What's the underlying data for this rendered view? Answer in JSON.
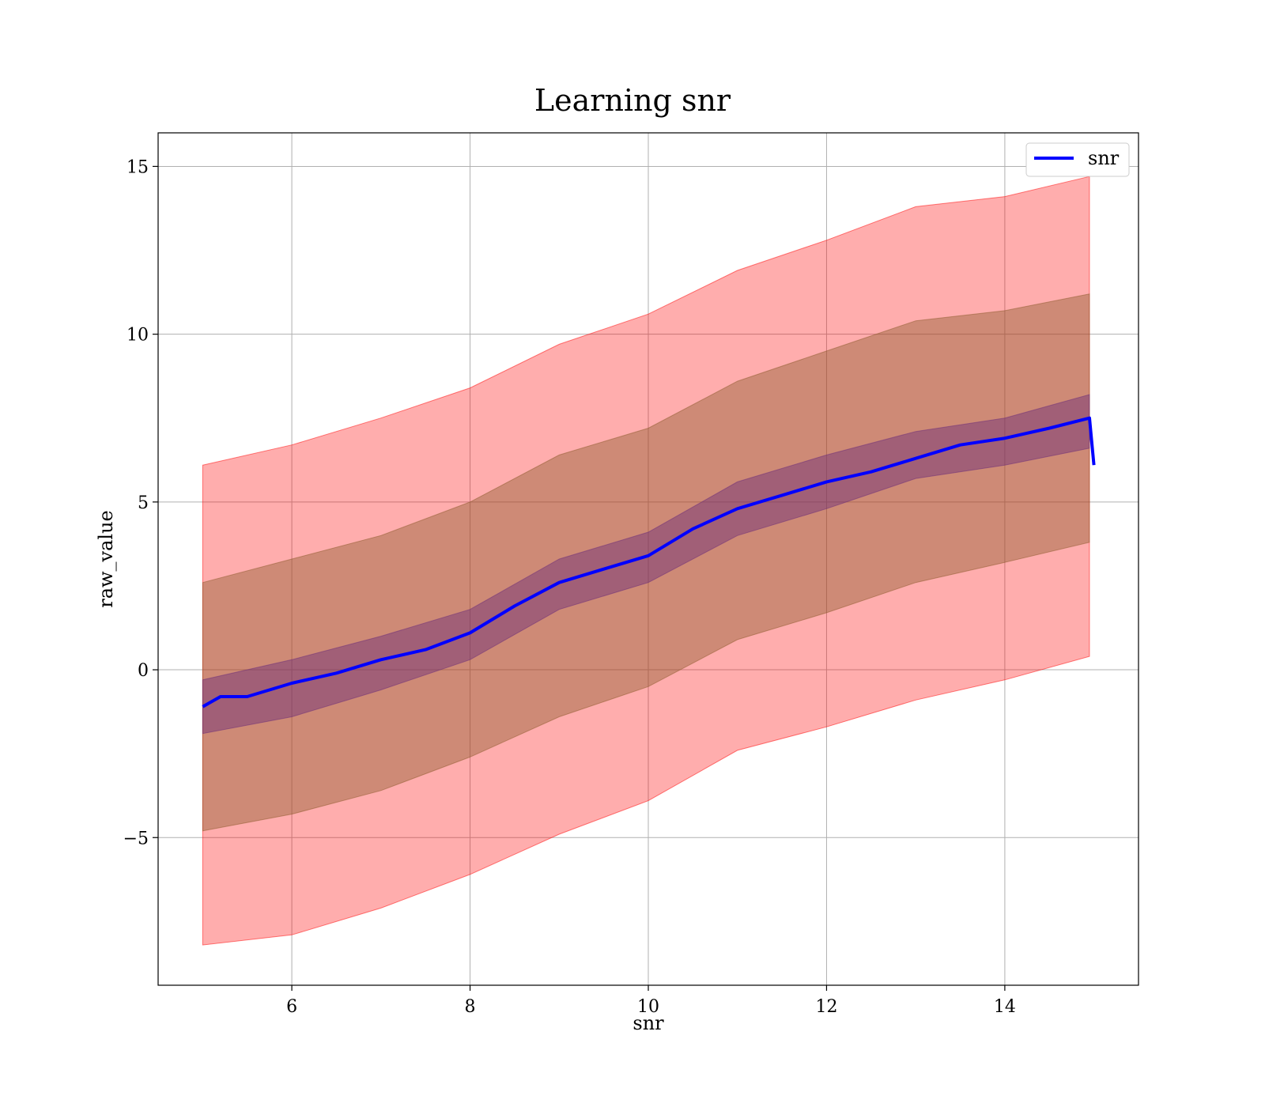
{
  "chart_data": {
    "type": "line",
    "title": "Learning snr",
    "xlabel": "snr",
    "ylabel": "raw_value",
    "xlim": [
      4.5,
      15.5
    ],
    "ylim": [
      -9.4,
      16.0
    ],
    "xticks": [
      6,
      8,
      10,
      12,
      14
    ],
    "yticks": [
      15,
      10,
      5,
      0,
      -5
    ],
    "ytick_labels": [
      "15",
      "10",
      "5",
      "0",
      "−5"
    ],
    "xtick_labels": [
      "6",
      "8",
      "10",
      "12",
      "14"
    ],
    "grid": true,
    "legend": {
      "placement": "top-right",
      "entries": [
        "snr"
      ]
    },
    "colors": {
      "line": "#0000ff",
      "band_outer": "#ff0000",
      "band_middle": "#8b5a2b",
      "band_inner": "#6a2b7a"
    },
    "series": [
      {
        "name": "snr",
        "x": [
          5.0,
          5.2,
          5.5,
          6.0,
          6.5,
          7.0,
          7.5,
          8.0,
          8.5,
          9.0,
          9.5,
          10.0,
          10.5,
          11.0,
          11.5,
          12.0,
          12.5,
          13.0,
          13.5,
          14.0,
          14.5,
          14.95,
          15.0
        ],
        "values": [
          -1.1,
          -0.8,
          -0.8,
          -0.4,
          -0.1,
          0.3,
          0.6,
          1.1,
          1.9,
          2.6,
          3.0,
          3.4,
          4.2,
          4.8,
          5.2,
          5.6,
          5.9,
          6.3,
          6.7,
          6.9,
          7.2,
          7.5,
          6.1
        ]
      }
    ],
    "bands": [
      {
        "level": "outer",
        "x": [
          5.0,
          6.0,
          7.0,
          8.0,
          9.0,
          10.0,
          11.0,
          12.0,
          13.0,
          14.0,
          14.95
        ],
        "upper": [
          6.1,
          6.7,
          7.5,
          8.4,
          9.7,
          10.6,
          11.9,
          12.8,
          13.8,
          14.1,
          14.7
        ],
        "lower": [
          -8.2,
          -7.9,
          -7.1,
          -6.1,
          -4.9,
          -3.9,
          -2.4,
          -1.7,
          -0.9,
          -0.3,
          0.4
        ]
      },
      {
        "level": "middle",
        "x": [
          5.0,
          6.0,
          7.0,
          8.0,
          9.0,
          10.0,
          11.0,
          12.0,
          13.0,
          14.0,
          14.95
        ],
        "upper": [
          2.6,
          3.3,
          4.0,
          5.0,
          6.4,
          7.2,
          8.6,
          9.5,
          10.4,
          10.7,
          11.2
        ],
        "lower": [
          -4.8,
          -4.3,
          -3.6,
          -2.6,
          -1.4,
          -0.5,
          0.9,
          1.7,
          2.6,
          3.2,
          3.8
        ]
      },
      {
        "level": "inner",
        "x": [
          5.0,
          6.0,
          7.0,
          8.0,
          9.0,
          10.0,
          11.0,
          12.0,
          13.0,
          14.0,
          14.95
        ],
        "upper": [
          -0.3,
          0.3,
          1.0,
          1.8,
          3.3,
          4.1,
          5.6,
          6.4,
          7.1,
          7.5,
          8.2
        ],
        "lower": [
          -1.9,
          -1.4,
          -0.6,
          0.3,
          1.8,
          2.6,
          4.0,
          4.8,
          5.7,
          6.1,
          6.6
        ]
      }
    ]
  }
}
